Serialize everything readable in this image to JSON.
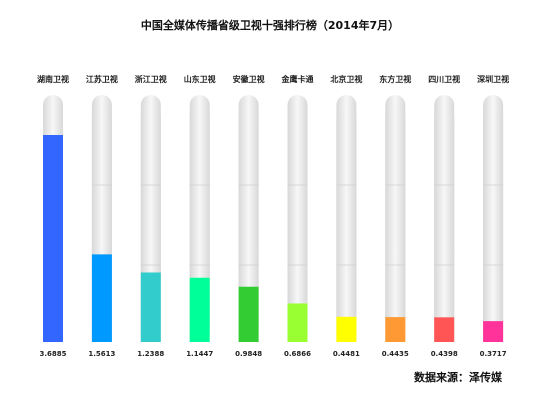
{
  "chart_data": {
    "type": "bar",
    "title": "中国全媒体传播省级卫视十强排行榜（2014年7月）",
    "categories": [
      "湖南卫视",
      "江苏卫视",
      "浙江卫视",
      "山东卫视",
      "安徽卫视",
      "金鹰卡通",
      "北京卫视",
      "东方卫视",
      "四川卫视",
      "深圳卫视"
    ],
    "values": [
      3.6885,
      1.5613,
      1.2388,
      1.1447,
      0.9848,
      0.6866,
      0.4481,
      0.4435,
      0.4398,
      0.3717
    ],
    "value_labels": [
      "3.6885",
      "1.5613",
      "1.2388",
      "1.1447",
      "0.9848",
      "0.6866",
      "0.4481",
      "0.4435",
      "0.4398",
      "0.3717"
    ],
    "colors": [
      "#3366ff",
      "#0099ff",
      "#33cccc",
      "#00ff99",
      "#33cc33",
      "#99ff33",
      "#ffff00",
      "#ff9933",
      "#ff5555",
      "#ff3399"
    ],
    "xlabel": "",
    "ylabel": "",
    "grid": false,
    "legend": "none"
  },
  "footer": {
    "source": "数据来源：泽传媒"
  }
}
